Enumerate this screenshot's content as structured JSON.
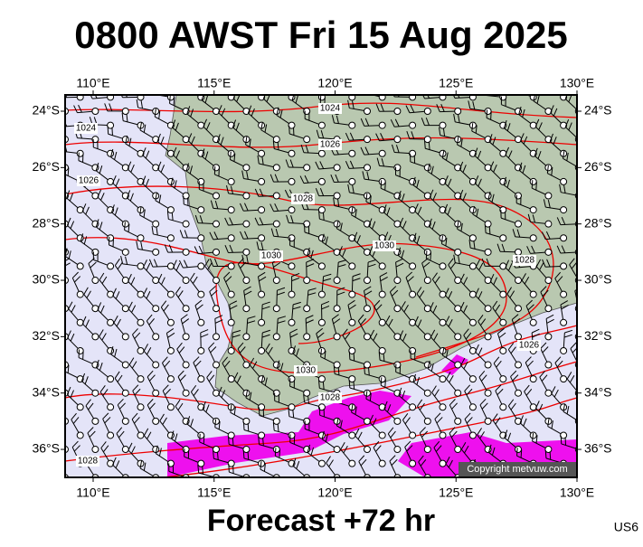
{
  "header": {
    "title": "0800 AWST Fri 15 Aug 2025"
  },
  "map": {
    "lon_ticks": [
      {
        "value": 110,
        "label": "110°E"
      },
      {
        "value": 115,
        "label": "115°E"
      },
      {
        "value": 120,
        "label": "120°E"
      },
      {
        "value": 125,
        "label": "125°E"
      },
      {
        "value": 130,
        "label": "130°E"
      }
    ],
    "lat_ticks": [
      {
        "value": 24,
        "label": "24°S"
      },
      {
        "value": 26,
        "label": "26°S"
      },
      {
        "value": 28,
        "label": "28°S"
      },
      {
        "value": 30,
        "label": "30°S"
      },
      {
        "value": 32,
        "label": "32°S"
      },
      {
        "value": 34,
        "label": "34°S"
      },
      {
        "value": 36,
        "label": "36°S"
      }
    ],
    "isobar_labels": [
      "1024",
      "1024",
      "1026",
      "1026",
      "1028",
      "1030",
      "1030",
      "1028",
      "1030",
      "1028",
      "1026",
      "1028"
    ],
    "copyright": "Copyright metvuw.com"
  },
  "footer": {
    "forecast": "Forecast +72 hr",
    "code": "US6"
  }
}
